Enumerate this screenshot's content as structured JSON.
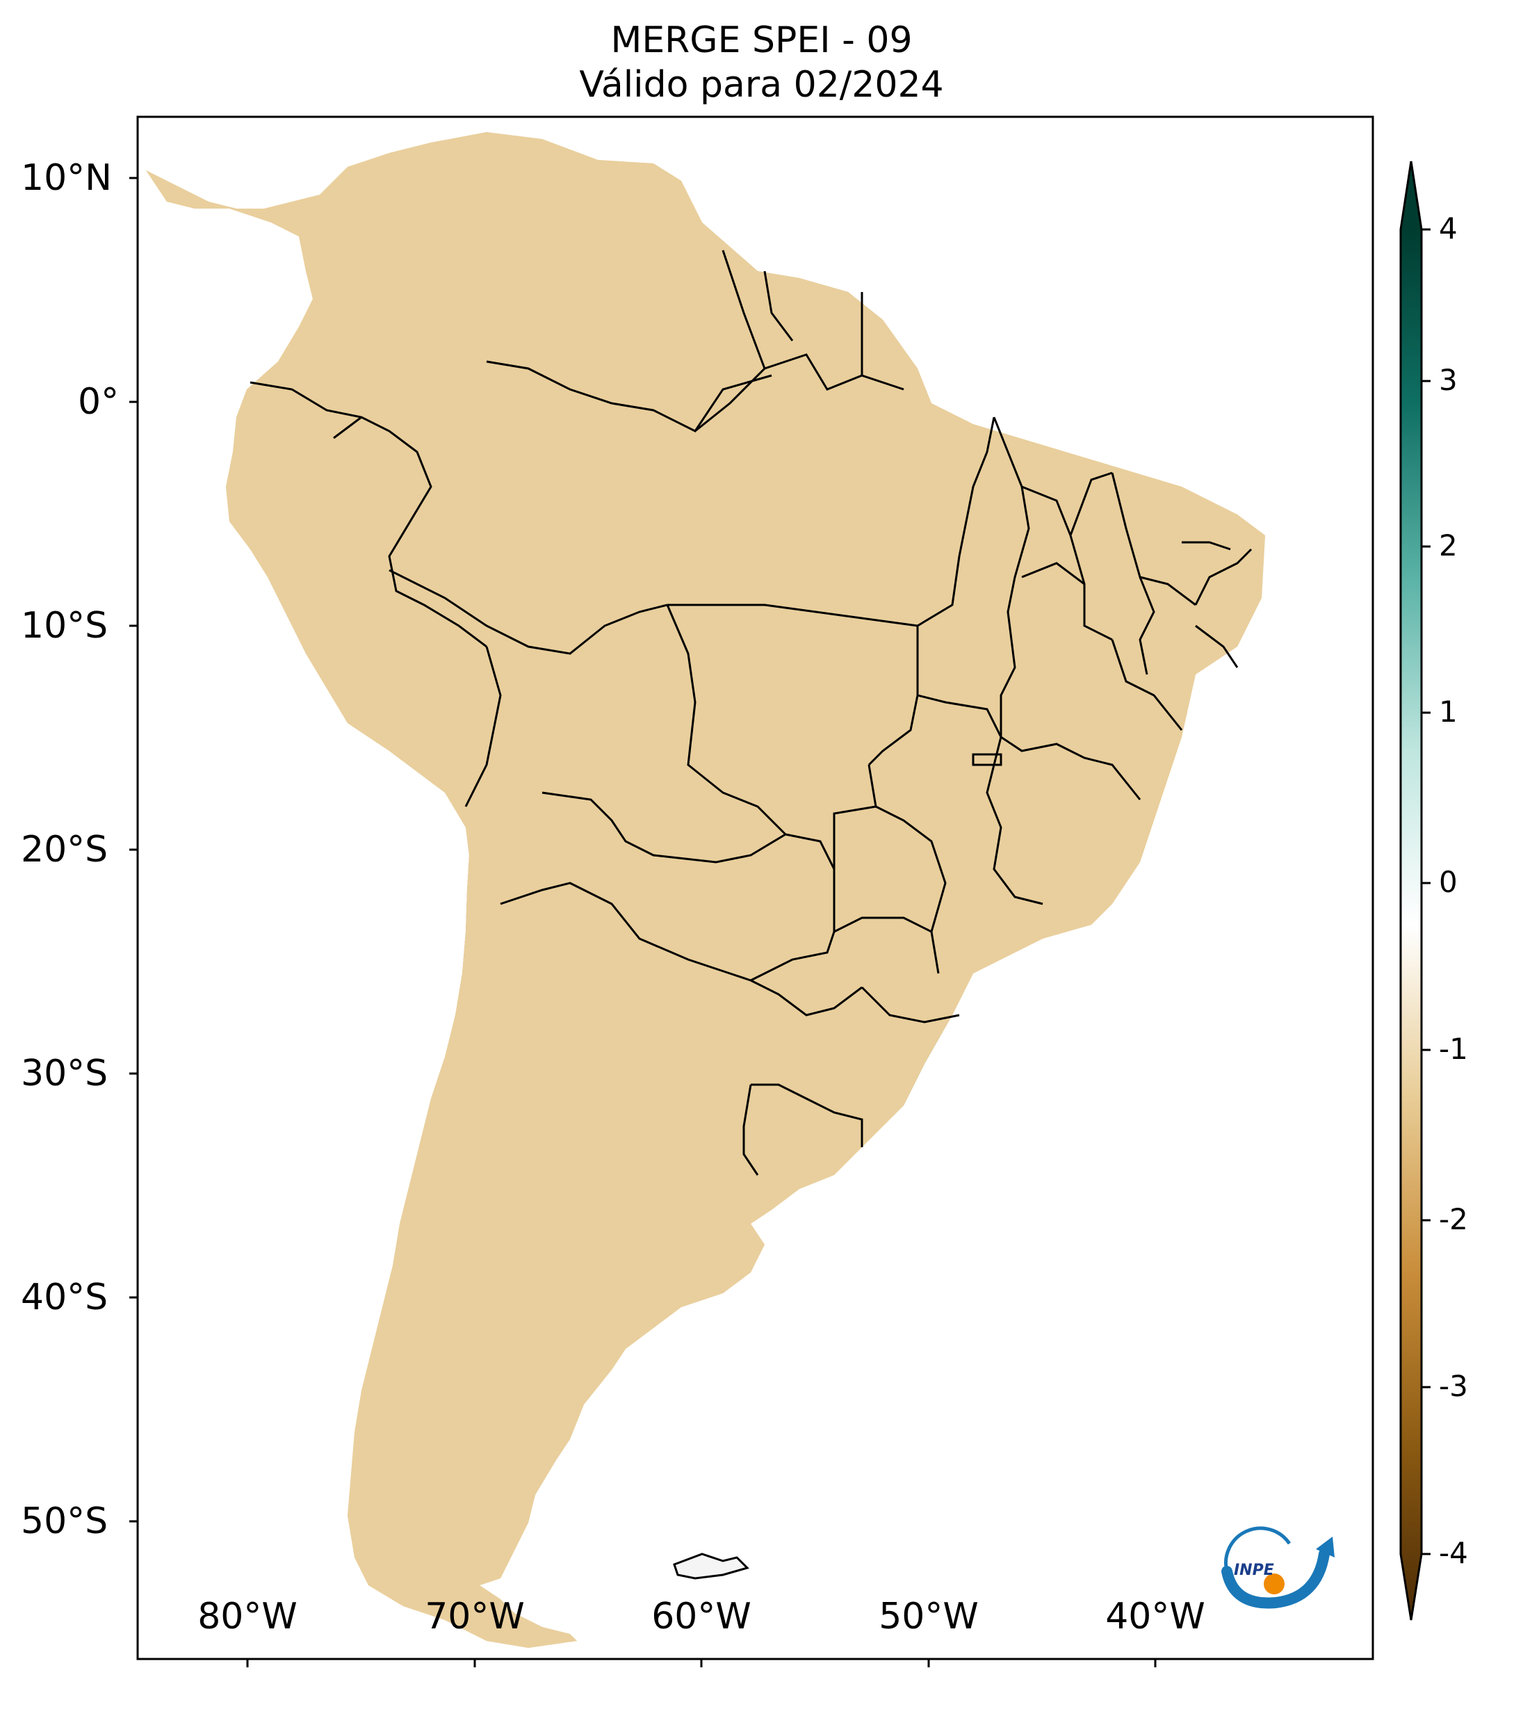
{
  "title": {
    "line1": "MERGE   SPEI - 09",
    "line2": "Válido para 02/2024"
  },
  "axes": {
    "lat_labels": [
      "10°N",
      "0°",
      "10°S",
      "20°S",
      "30°S",
      "40°S",
      "50°S"
    ],
    "lon_labels": [
      "80°W",
      "70°W",
      "60°W",
      "50°W",
      "40°W"
    ]
  },
  "colorbar": {
    "labels": [
      "4",
      "3",
      "2",
      "1",
      "0",
      "-1",
      "-2",
      "-3",
      "-4"
    ],
    "min": -4,
    "max": 4,
    "colors": [
      "#4a2a05",
      "#8b5a12",
      "#c98d3a",
      "#e8cc95",
      "#ffffff",
      "#bfe6df",
      "#5ab2a6",
      "#0f6f63",
      "#003c30"
    ]
  },
  "logo": {
    "text": "INPE"
  }
}
